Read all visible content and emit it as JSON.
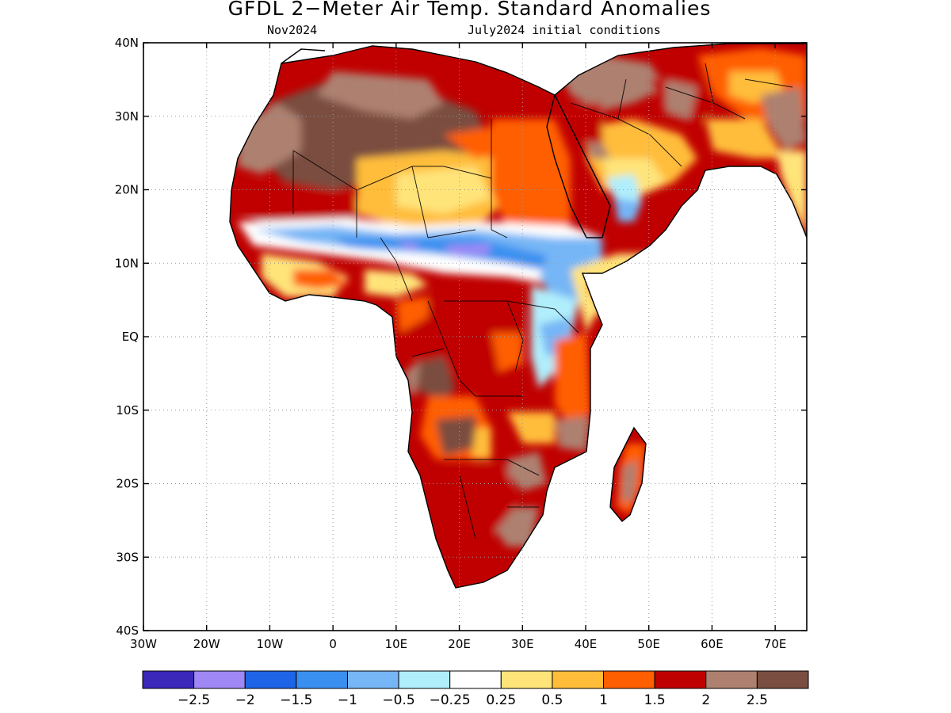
{
  "title": "GFDL 2−Meter Air Temp. Standard Anomalies",
  "valid_month": "Nov2024",
  "init_conditions": "July2024 initial conditions",
  "map": {
    "lon_range": [
      -30,
      75
    ],
    "lat_range": [
      -40,
      40
    ],
    "lat_ticks": [
      {
        "value": 40,
        "label": "40N"
      },
      {
        "value": 30,
        "label": "30N"
      },
      {
        "value": 20,
        "label": "20N"
      },
      {
        "value": 10,
        "label": "10N"
      },
      {
        "value": 0,
        "label": "EQ"
      },
      {
        "value": -10,
        "label": "10S"
      },
      {
        "value": -20,
        "label": "20S"
      },
      {
        "value": -30,
        "label": "30S"
      },
      {
        "value": -40,
        "label": "40S"
      }
    ],
    "lon_ticks": [
      {
        "value": -30,
        "label": "30W"
      },
      {
        "value": -20,
        "label": "20W"
      },
      {
        "value": -10,
        "label": "10W"
      },
      {
        "value": 0,
        "label": "0"
      },
      {
        "value": 10,
        "label": "10E"
      },
      {
        "value": 20,
        "label": "20E"
      },
      {
        "value": 30,
        "label": "30E"
      },
      {
        "value": 40,
        "label": "40E"
      },
      {
        "value": 50,
        "label": "50E"
      },
      {
        "value": 60,
        "label": "60E"
      },
      {
        "value": 70,
        "label": "70E"
      }
    ],
    "grid": "dotted"
  },
  "colorbar": {
    "colors": [
      "#3b27ba",
      "#9f88f6",
      "#1e64e6",
      "#3a90f0",
      "#76b6f6",
      "#b0eefc",
      "#ffffff",
      "#ffe47a",
      "#ffbd3a",
      "#ff5f00",
      "#c00000",
      "#ad8070",
      "#7a4e40"
    ],
    "labels": [
      "−2.5",
      "−2",
      "−1.5",
      "−1",
      "−0.5",
      "−0.25",
      "0.25",
      "0.5",
      "1",
      "1.5",
      "2",
      "2.5"
    ]
  }
}
